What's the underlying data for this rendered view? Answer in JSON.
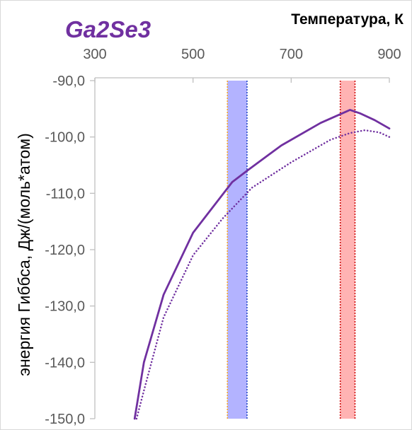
{
  "chart_data": {
    "type": "line",
    "title": "Ga2Se3",
    "xlabel": "Температура, К",
    "ylabel": "энергия Гиббса, Дж/(моль*атом)",
    "xlim": [
      300,
      900
    ],
    "ylim": [
      -150,
      -90
    ],
    "x_ticks": [
      "300",
      "500",
      "700",
      "900"
    ],
    "y_ticks": [
      "-90,0",
      "-100,0",
      "-110,0",
      "-120,0",
      "-130,0",
      "-140,0",
      "-150,0"
    ],
    "x_axis_position": "top",
    "grid": false,
    "series": [
      {
        "style": "solid",
        "color": "#7030a0",
        "points": [
          [
            381,
            -150
          ],
          [
            400,
            -140
          ],
          [
            440,
            -128
          ],
          [
            500,
            -117
          ],
          [
            580,
            -108
          ],
          [
            610,
            -106
          ],
          [
            680,
            -101.5
          ],
          [
            760,
            -97.5
          ],
          [
            812,
            -95.5
          ],
          [
            820,
            -95.2
          ],
          [
            840,
            -95.8
          ],
          [
            870,
            -97
          ],
          [
            900,
            -98.5
          ]
        ]
      },
      {
        "style": "dotted",
        "color": "#7030a0",
        "points": [
          [
            385,
            -150
          ],
          [
            400,
            -145
          ],
          [
            440,
            -132
          ],
          [
            500,
            -121
          ],
          [
            560,
            -114.5
          ],
          [
            620,
            -109
          ],
          [
            700,
            -104.5
          ],
          [
            780,
            -100.5
          ],
          [
            820,
            -99.3
          ],
          [
            850,
            -98.8
          ],
          [
            880,
            -99.2
          ],
          [
            900,
            -100
          ]
        ]
      }
    ],
    "bands": [
      {
        "from": 570,
        "to": 610,
        "fill": "#b3b3ff",
        "left_edge": "#f5a623",
        "right_edge": "#1a3fc4"
      },
      {
        "from": 800,
        "to": 830,
        "fill": "#ffb3b3",
        "left_edge": "#cc0000",
        "right_edge": "#cc0000"
      }
    ]
  }
}
